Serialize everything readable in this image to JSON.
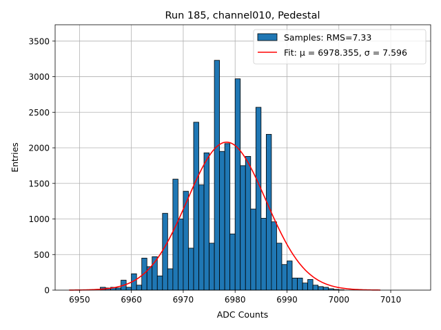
{
  "chart_data": {
    "type": "bar",
    "title": "Run 185, channel010, Pedestal",
    "xlabel": "ADC Counts",
    "ylabel": "Entries",
    "xlim": [
      6945.3,
      7017.7
    ],
    "ylim": [
      0,
      3730
    ],
    "xticks": [
      6950,
      6960,
      6970,
      6980,
      6990,
      7000,
      7010
    ],
    "yticks": [
      0,
      500,
      1000,
      1500,
      2000,
      2500,
      3000,
      3500
    ],
    "grid": true,
    "legend_position": "top-right",
    "bin_width": 1,
    "colors": {
      "bar_fill": "#1f77b4",
      "bar_edge": "#000000",
      "fit_line": "#ff0000",
      "grid": "#b0b0b0"
    },
    "histogram": {
      "name": "Samples: RMS=7.33",
      "bin_start": [
        6954,
        6955,
        6956,
        6957,
        6958,
        6959,
        6960,
        6961,
        6962,
        6963,
        6964,
        6965,
        6966,
        6967,
        6968,
        6969,
        6970,
        6971,
        6972,
        6973,
        6974,
        6975,
        6976,
        6977,
        6978,
        6979,
        6980,
        6981,
        6982,
        6983,
        6984,
        6985,
        6986,
        6987,
        6988,
        6989,
        6990,
        6991,
        6992,
        6993,
        6994,
        6995,
        6996,
        6997,
        6998,
        6999,
        7000
      ],
      "counts": [
        40,
        30,
        40,
        30,
        140,
        40,
        230,
        70,
        450,
        330,
        470,
        200,
        1080,
        300,
        1560,
        1000,
        1390,
        590,
        2360,
        1480,
        1930,
        660,
        3230,
        1950,
        2060,
        790,
        2970,
        1750,
        1880,
        1140,
        2570,
        1010,
        2190,
        960,
        660,
        360,
        410,
        170,
        170,
        100,
        150,
        70,
        50,
        40,
        20,
        10,
        5
      ]
    },
    "fit": {
      "name": "Fit: μ = 6978.355, σ = 7.596",
      "mu": 6978.355,
      "sigma": 7.596,
      "amplitude": 2080,
      "x_range": [
        6948,
        7008
      ]
    }
  }
}
